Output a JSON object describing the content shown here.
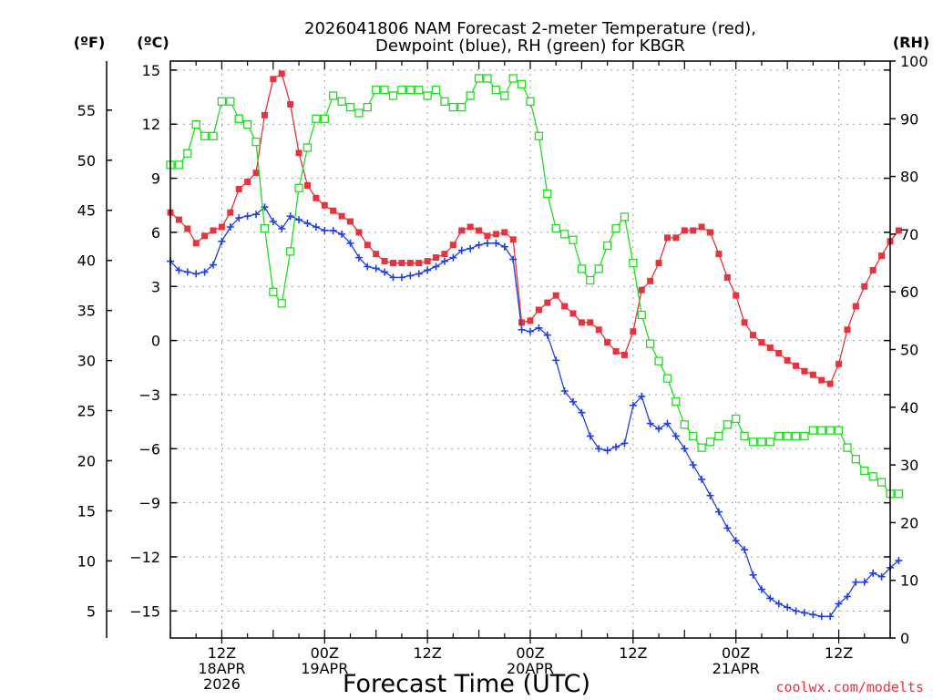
{
  "chart_data": {
    "type": "line",
    "title_line1": "2026041806 NAM Forecast 2-meter Temperature (red),",
    "title_line2": "Dewpoint (blue), RH (green) for KBGR",
    "xlabel": "Forecast Time (UTC)",
    "credit": "coolwx.com/modelts",
    "left_axis_label": "(ºF)",
    "celsius_axis_label": "(ºC)",
    "right_axis_label": "(RH)",
    "x_unit": "forecast hours from 2026041806",
    "xlim": [
      0,
      84
    ],
    "ylim_c": [
      -16.5,
      15.5
    ],
    "ylim_rh": [
      0,
      100
    ],
    "f_ticks": [
      5,
      10,
      15,
      20,
      25,
      30,
      35,
      40,
      45,
      50,
      55
    ],
    "c_ticks": [
      -15,
      -12,
      -9,
      -6,
      -3,
      0,
      3,
      6,
      9,
      12,
      15
    ],
    "rh_ticks": [
      0,
      10,
      20,
      30,
      40,
      50,
      60,
      70,
      80,
      90,
      100
    ],
    "x_ticks": [
      {
        "hour": 6,
        "line1": "12Z",
        "line2": "18APR",
        "line3": "2026"
      },
      {
        "hour": 18,
        "line1": "00Z",
        "line2": "19APR",
        "line3": ""
      },
      {
        "hour": 30,
        "line1": "12Z",
        "line2": "",
        "line3": ""
      },
      {
        "hour": 42,
        "line1": "00Z",
        "line2": "20APR",
        "line3": ""
      },
      {
        "hour": 54,
        "line1": "12Z",
        "line2": "",
        "line3": ""
      },
      {
        "hour": 66,
        "line1": "00Z",
        "line2": "21APR",
        "line3": ""
      },
      {
        "hour": 78,
        "line1": "12Z",
        "line2": "",
        "line3": ""
      }
    ],
    "grid": true,
    "colors": {
      "temperature": "#e8323c",
      "dewpoint": "#2040e0",
      "rh": "#22dd22",
      "grid": "#9a9a9a"
    },
    "series": [
      {
        "axis": "celsius",
        "values": [
          7.1,
          6.7,
          6.2,
          5.4,
          5.8,
          6.1,
          6.3,
          7.1,
          8.4,
          8.8,
          9.3,
          12.5,
          14.5,
          14.8,
          13.1,
          10.4,
          8.6,
          7.9,
          7.5,
          7.2,
          6.9,
          6.6,
          6.0,
          5.3,
          4.8,
          4.4,
          4.3,
          4.3,
          4.3,
          4.3,
          4.4,
          4.6,
          4.8,
          5.3,
          6.1,
          6.3,
          6.1,
          5.8,
          5.9,
          6.0,
          5.6,
          1.0,
          1.1,
          1.7,
          2.1,
          2.5,
          1.9,
          1.5,
          1.0,
          1.0,
          0.6,
          -0.1,
          -0.6,
          -0.8,
          0.5,
          2.8,
          3.3,
          4.3,
          5.7,
          5.7,
          6.1,
          6.1,
          6.3,
          6.0,
          4.8,
          3.5,
          2.5,
          1.0,
          0.3,
          -0.1,
          -0.4,
          -0.7,
          -1.1,
          -1.4,
          -1.7,
          -1.9,
          -2.2,
          -2.4,
          -1.3,
          0.6,
          1.9,
          3.0,
          3.9,
          4.7,
          5.5,
          6.1
        ]
      },
      {
        "axis": "celsius",
        "values": [
          4.4,
          3.9,
          3.8,
          3.7,
          3.8,
          4.2,
          5.5,
          6.3,
          6.8,
          6.9,
          7.0,
          7.4,
          6.6,
          6.2,
          6.9,
          6.7,
          6.5,
          6.3,
          6.1,
          6.1,
          5.9,
          5.4,
          4.6,
          4.1,
          4.0,
          3.8,
          3.5,
          3.5,
          3.6,
          3.7,
          3.9,
          4.1,
          4.4,
          4.6,
          5.0,
          5.1,
          5.3,
          5.4,
          5.4,
          5.2,
          4.5,
          0.6,
          0.5,
          0.7,
          0.3,
          -1.1,
          -2.8,
          -3.4,
          -4.0,
          -5.3,
          -6.0,
          -6.1,
          -5.9,
          -5.7,
          -3.6,
          -3.1,
          -4.6,
          -4.9,
          -4.6,
          -5.3,
          -6.0,
          -6.9,
          -7.7,
          -8.6,
          -9.5,
          -10.4,
          -11.1,
          -11.6,
          -13.0,
          -13.8,
          -14.3,
          -14.6,
          -14.8,
          -15.0,
          -15.1,
          -15.2,
          -15.3,
          -15.3,
          -14.6,
          -14.2,
          -13.4,
          -13.4,
          -12.9,
          -13.1,
          -12.6,
          -12.2
        ]
      },
      {
        "axis": "rh",
        "values": [
          82,
          82,
          84,
          89,
          87,
          87,
          93,
          93,
          90,
          89,
          86,
          71,
          60,
          58,
          67,
          78,
          85,
          90,
          90,
          94,
          93,
          92,
          91,
          92,
          95,
          95,
          94,
          95,
          95,
          95,
          94,
          95,
          93,
          92,
          92,
          94,
          97,
          97,
          95,
          94,
          97,
          96,
          93,
          87,
          77,
          71,
          70,
          69,
          64,
          62,
          64,
          68,
          71,
          73,
          65,
          56,
          51,
          48,
          45,
          41,
          37,
          35,
          33,
          34,
          35,
          37,
          38,
          35,
          34,
          34,
          34,
          35,
          35,
          35,
          35,
          36,
          36,
          36,
          36,
          33,
          31,
          29,
          28,
          27,
          25,
          25
        ]
      }
    ]
  }
}
